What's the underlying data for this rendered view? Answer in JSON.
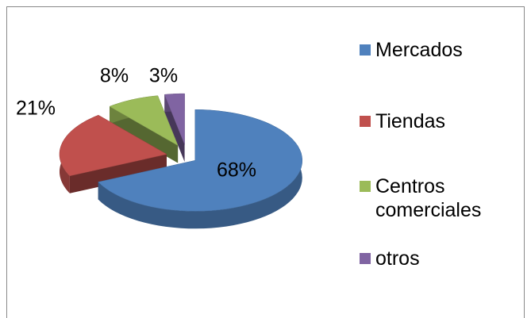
{
  "chart_data": {
    "type": "pie",
    "categories": [
      "Mercados",
      "Tiendas",
      "Centros comerciales",
      "otros"
    ],
    "values": [
      68,
      21,
      8,
      3
    ],
    "value_labels": [
      "68%",
      "21%",
      "8%",
      "3%"
    ],
    "colors": [
      "#4f81bd",
      "#c0504d",
      "#9bbb59",
      "#8064a2"
    ],
    "legend": "right"
  }
}
